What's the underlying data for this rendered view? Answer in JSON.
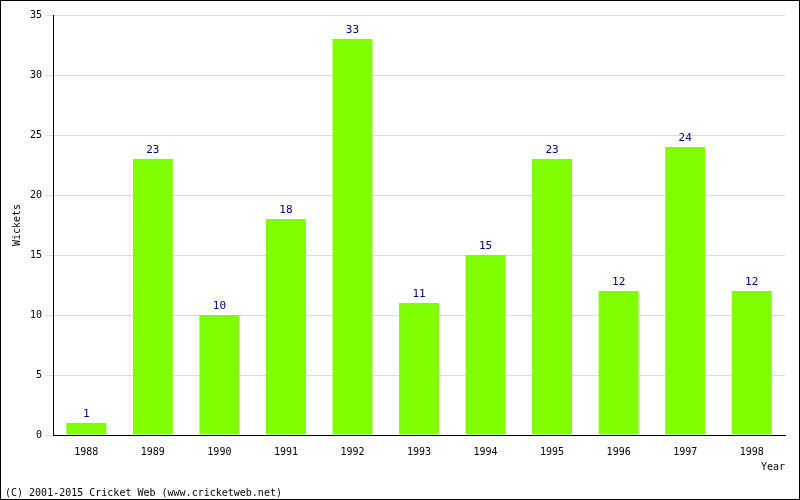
{
  "chart_data": {
    "type": "bar",
    "categories": [
      "1988",
      "1989",
      "1990",
      "1991",
      "1992",
      "1993",
      "1994",
      "1995",
      "1996",
      "1997",
      "1998"
    ],
    "values": [
      1,
      23,
      10,
      18,
      33,
      11,
      15,
      23,
      12,
      24,
      12
    ],
    "color": "#80ff00",
    "x_label": "Year",
    "y_label": "Wickets",
    "ylim": [
      0,
      35
    ],
    "yticks": [
      0,
      5,
      10,
      15,
      20,
      25,
      30,
      35
    ],
    "grid": true,
    "data_labels": true,
    "annotations": [
      "(C) 2001-2015 Cricket Web (www.cricketweb.net)"
    ]
  }
}
